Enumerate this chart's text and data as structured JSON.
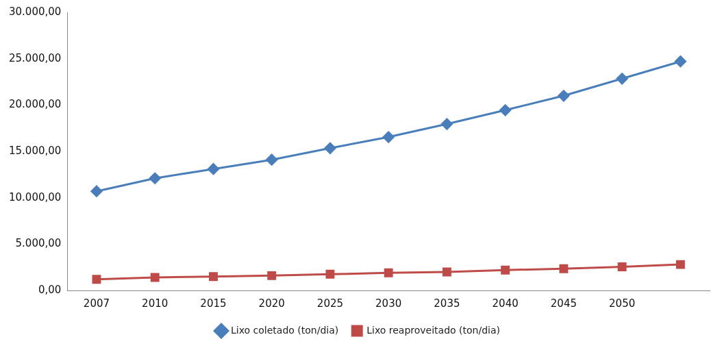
{
  "chart_data": {
    "type": "line",
    "categories": [
      "2007",
      "2010",
      "2015",
      "2020",
      "2025",
      "2030",
      "2035",
      "2040",
      "2045",
      "2050",
      null
    ],
    "series": [
      {
        "name": "Lixo coletado (ton/dia)",
        "color": "#4a7ebb",
        "marker": "diamond",
        "values": [
          10700,
          12100,
          13100,
          14100,
          15350,
          16550,
          17950,
          19450,
          21000,
          22850,
          24700
        ]
      },
      {
        "name": "Lixo reaproveitado (ton/dia)",
        "color": "#be4b48",
        "marker": "square",
        "values": [
          1200,
          1400,
          1500,
          1600,
          1750,
          1900,
          2000,
          2200,
          2350,
          2550,
          2800
        ]
      }
    ],
    "ylim": [
      0,
      30000
    ],
    "yticks": [
      {
        "value": 0,
        "label": "0,00"
      },
      {
        "value": 5000,
        "label": "5.000,00"
      },
      {
        "value": 10000,
        "label": "10.000,00"
      },
      {
        "value": 15000,
        "label": "15.000,00"
      },
      {
        "value": 20000,
        "label": "20.000,00"
      },
      {
        "value": 25000,
        "label": "25.000,00"
      },
      {
        "value": 30000,
        "label": "30.000,00"
      }
    ],
    "grid": false,
    "legend": "bottom",
    "line_style": "solid"
  }
}
